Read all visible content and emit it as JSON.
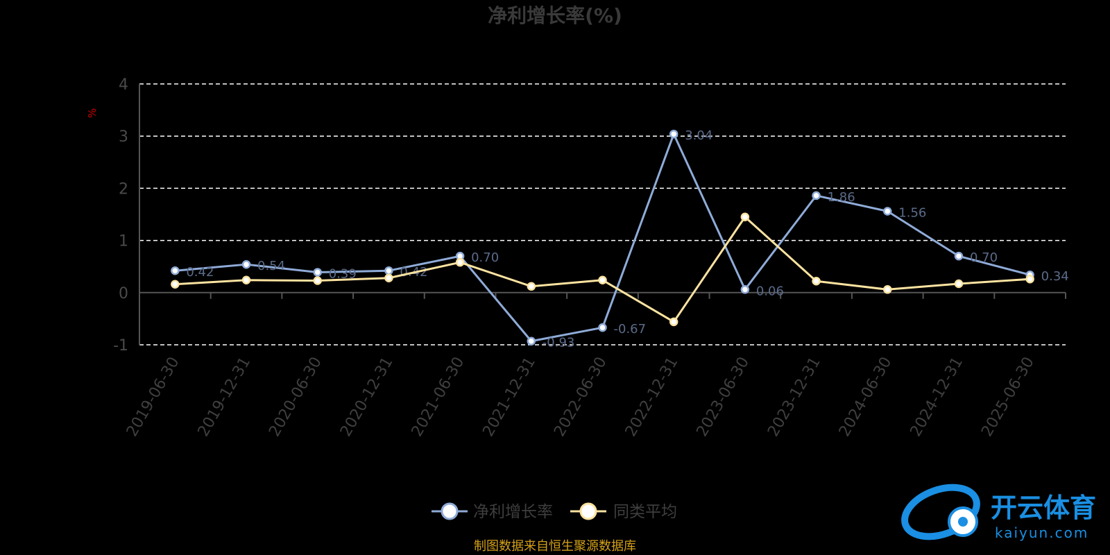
{
  "chart_data": {
    "type": "line",
    "title": "净利增长率(%)",
    "ylabel": "%",
    "xlabel": "",
    "ylim": [
      -1,
      4
    ],
    "yticks": [
      -1,
      0,
      1,
      2,
      3,
      4
    ],
    "grid": true,
    "legend_position": "bottom",
    "categories": [
      "2019-06-30",
      "2019-12-31",
      "2020-06-30",
      "2020-12-31",
      "2021-06-30",
      "2021-12-31",
      "2022-06-30",
      "2022-12-31",
      "2023-06-30",
      "2023-12-31",
      "2024-06-30",
      "2024-12-31",
      "2025-06-30"
    ],
    "series": [
      {
        "name": "净利增长率",
        "color": "#8fabd8",
        "values": [
          0.42,
          0.54,
          0.39,
          0.42,
          0.7,
          -0.93,
          -0.67,
          3.04,
          0.06,
          1.86,
          1.56,
          0.7,
          0.34
        ]
      },
      {
        "name": "同类平均",
        "color": "#fce3a0",
        "values": [
          0.16,
          0.24,
          0.23,
          0.28,
          0.58,
          0.12,
          0.24,
          -0.56,
          1.45,
          0.22,
          0.06,
          0.17,
          0.26
        ]
      }
    ]
  },
  "footer": {
    "source": "制图数据来自恒生聚源数据库"
  },
  "watermark": {
    "brand": "开云体育",
    "domain": "kaiyun.com"
  }
}
